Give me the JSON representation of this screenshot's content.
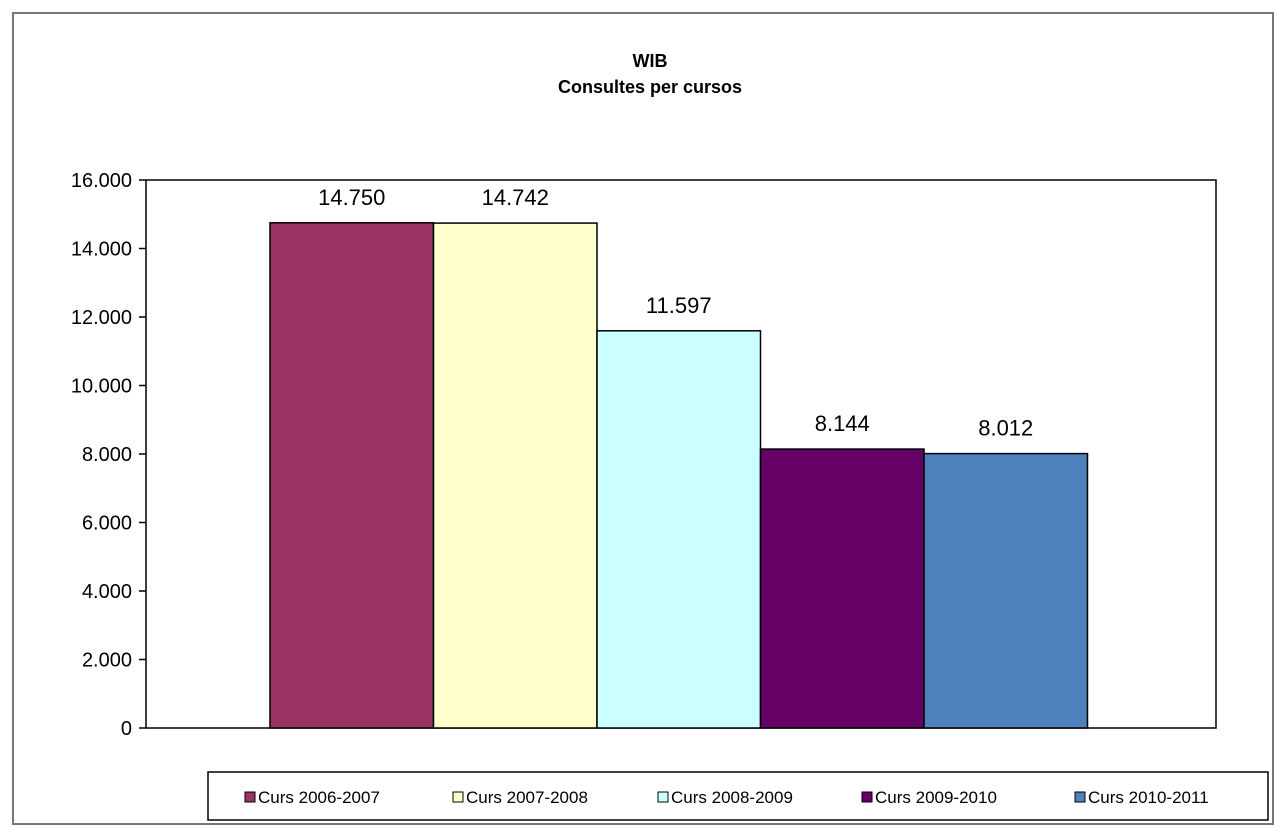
{
  "chart_data": {
    "type": "bar",
    "title": "WIB",
    "subtitle": "Consultes per cursos",
    "xlabel": "",
    "ylabel": "",
    "ylim": [
      0,
      16000
    ],
    "yticks": [
      0,
      2000,
      4000,
      6000,
      8000,
      10000,
      12000,
      14000,
      16000
    ],
    "ytick_labels": [
      "0",
      "2.000",
      "4.000",
      "6.000",
      "8.000",
      "10.000",
      "12.000",
      "14.000",
      "16.000"
    ],
    "grid": false,
    "legend_position": "bottom",
    "series": [
      {
        "name": "Curs 2006-2007",
        "value": 14750,
        "label": "14.750",
        "color": "#993366"
      },
      {
        "name": "Curs 2007-2008",
        "value": 14742,
        "label": "14.742",
        "color": "#FFFFCC"
      },
      {
        "name": "Curs 2008-2009",
        "value": 11597,
        "label": "11.597",
        "color": "#CCFFFF"
      },
      {
        "name": "Curs 2009-2010",
        "value": 8144,
        "label": "8.144",
        "color": "#660066"
      },
      {
        "name": "Curs 2010-2011",
        "value": 8012,
        "label": "8.012",
        "color": "#4F81BD"
      }
    ]
  }
}
